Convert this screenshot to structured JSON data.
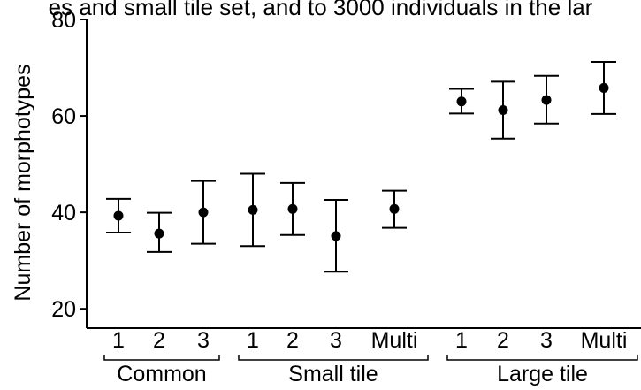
{
  "caption": "es and small tile set, and to 3000 individuals in the lar",
  "chart_data": {
    "type": "scatter",
    "title": "",
    "xlabel": "",
    "ylabel": "Number of morphotypes",
    "ylim": [
      16,
      80
    ],
    "yticks": [
      20,
      40,
      60,
      80
    ],
    "grid": false,
    "legend": "none",
    "groups": [
      {
        "label": "Common",
        "points": [
          {
            "label": "1",
            "mean": 39.3,
            "lower": 35.8,
            "upper": 42.8
          },
          {
            "label": "2",
            "mean": 35.6,
            "lower": 31.8,
            "upper": 39.9
          },
          {
            "label": "3",
            "mean": 40.0,
            "lower": 33.5,
            "upper": 46.5
          }
        ]
      },
      {
        "label": "Small tile",
        "points": [
          {
            "label": "1",
            "mean": 40.5,
            "lower": 33.0,
            "upper": 48.0
          },
          {
            "label": "2",
            "mean": 40.7,
            "lower": 35.3,
            "upper": 46.1
          },
          {
            "label": "3",
            "mean": 35.1,
            "lower": 27.7,
            "upper": 42.6
          },
          {
            "label": "Multi",
            "mean": 40.7,
            "lower": 36.8,
            "upper": 44.5
          }
        ]
      },
      {
        "label": "Large tile",
        "points": [
          {
            "label": "1",
            "mean": 63.0,
            "lower": 60.5,
            "upper": 65.6
          },
          {
            "label": "2",
            "mean": 61.2,
            "lower": 55.3,
            "upper": 67.1
          },
          {
            "label": "3",
            "mean": 63.3,
            "lower": 58.4,
            "upper": 68.3
          },
          {
            "label": "Multi",
            "mean": 65.8,
            "lower": 60.4,
            "upper": 71.2
          }
        ]
      }
    ]
  }
}
